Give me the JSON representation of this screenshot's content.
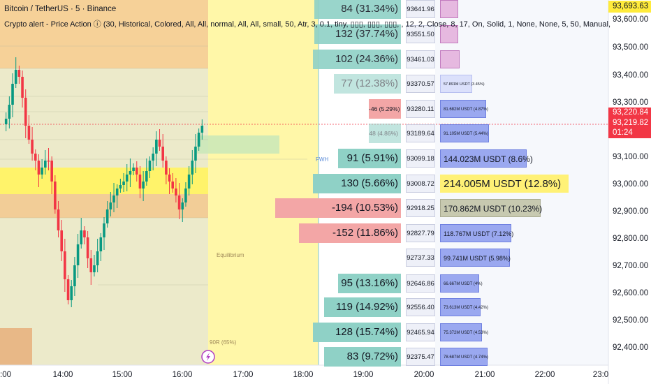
{
  "header": {
    "title": "Bitcoin / TetherUS · 5 · Binance",
    "indicator": "Crypto alert - Price Action ⓘ (30, Historical, Colored, All, All, normal, All, All, small, 50, Atr, 3, 0.1, tiny, ▯▯▯, ▯▯▯, ▯▯▯, , 12, 2, Close, 8, 17, On, Solid, 1, None, None, 5, 50, Manual,"
  },
  "price_axis": {
    "labels": [
      "93,600.00",
      "93,500.00",
      "93,400.00",
      "93,300.00",
      "93,100.00",
      "93,000.00",
      "92,900.00",
      "92,800.00",
      "92,700.00",
      "92,600.00",
      "92,500.00",
      "92,400.00"
    ],
    "top_badge": "93,693.63",
    "badges": [
      "93,220.84",
      "93,219.82",
      "01:24"
    ],
    "colors": {
      "top_badge_bg": "#ffeb3b",
      "red_badge_bg": "#f23645"
    }
  },
  "time_axis": {
    "labels": [
      ":00",
      "14:00",
      "15:00",
      "16:00",
      "17:00",
      "18:00",
      "19:00",
      "20:00",
      "21:00",
      "22:00",
      "23:0"
    ]
  },
  "zones": {
    "fwh_label": "FWH",
    "equilibrium_label": "Equilibrium",
    "pct_label": "90R (65%)"
  },
  "order_book": [
    {
      "count": "84 (31.34%)",
      "price": "93641.96",
      "volume": ""
    },
    {
      "count": "132 (37.74%)",
      "price": "93551.50",
      "volume": ""
    },
    {
      "count": "102 (24.36%)",
      "price": "93461.03",
      "volume": ""
    },
    {
      "count": "77 (12.38%)",
      "price": "93370.57",
      "volume": "57.891M USDT (3.45%)"
    },
    {
      "count": "-46 (5.29%)",
      "price": "93280.11",
      "volume": "81.682M USDT (4.87%)"
    },
    {
      "count": "48 (4.86%)",
      "price": "93189.64",
      "volume": "91.105M USDT (5.44%)"
    },
    {
      "count": "91 (5.91%)",
      "price": "93099.18",
      "volume": "144.023M USDT (8.6%)"
    },
    {
      "count": "130 (5.66%)",
      "price": "93008.72",
      "volume": "214.005M USDT (12.8%)"
    },
    {
      "count": "-194 (10.53%)",
      "price": "92918.25",
      "volume": "170.862M USDT (10.23%)"
    },
    {
      "count": "-152 (11.86%)",
      "price": "92827.79",
      "volume": "118.767M USDT (7.12%)"
    },
    {
      "count": "",
      "price": "92737.33",
      "volume": "99.741M USDT (5.98%)"
    },
    {
      "count": "95 (13.16%)",
      "price": "92646.86",
      "volume": "66.667M USDT (4%)"
    },
    {
      "count": "119 (14.92%)",
      "price": "92556.40",
      "volume": "73.613M USDT (4.42%)"
    },
    {
      "count": "128 (15.74%)",
      "price": "92465.94",
      "volume": "75.372M USDT (4.53%)"
    },
    {
      "count": "83 (9.72%)",
      "price": "92375.47",
      "volume": "78.687M USDT (4.74%)"
    }
  ],
  "colors": {
    "up": "#089981",
    "down": "#f23645",
    "buy_box": "#8fd1c6",
    "sell_box": "#f3a6a6",
    "volume_box": "#9aa8f0",
    "volume_box_big": "#fff176"
  }
}
